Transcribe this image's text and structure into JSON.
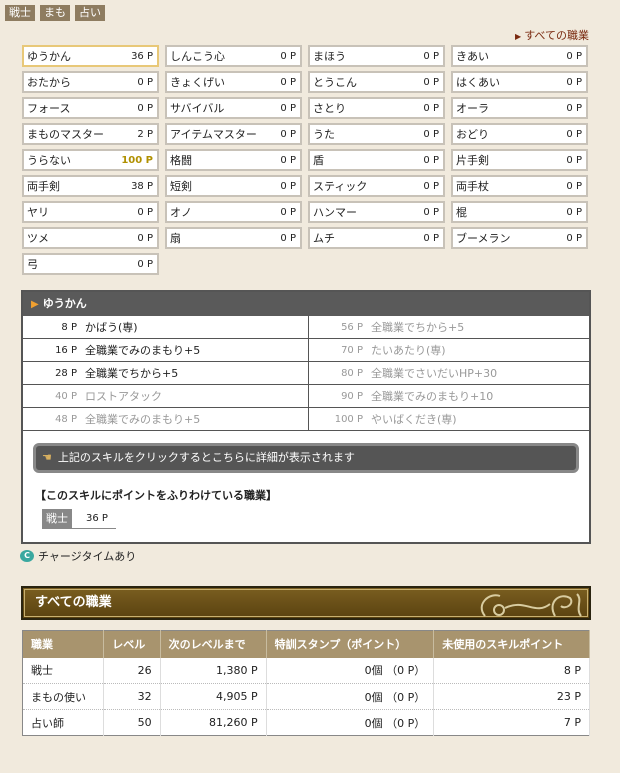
{
  "tabs": [
    "戦士",
    "まも",
    "占い"
  ],
  "all_jobs_link": "すべての職業",
  "skill_grid": [
    {
      "name": "ゆうかん",
      "points": "36 P",
      "selected": true
    },
    {
      "name": "しんこう心",
      "points": "0 P"
    },
    {
      "name": "まほう",
      "points": "0 P"
    },
    {
      "name": "きあい",
      "points": "0 P"
    },
    {
      "name": "おたから",
      "points": "0 P"
    },
    {
      "name": "きょくげい",
      "points": "0 P"
    },
    {
      "name": "とうこん",
      "points": "0 P"
    },
    {
      "name": "はくあい",
      "points": "0 P"
    },
    {
      "name": "フォース",
      "points": "0 P"
    },
    {
      "name": "サバイバル",
      "points": "0 P"
    },
    {
      "name": "さとり",
      "points": "0 P"
    },
    {
      "name": "オーラ",
      "points": "0 P"
    },
    {
      "name": "まものマスター",
      "points": "2 P"
    },
    {
      "name": "アイテムマスター",
      "points": "0 P"
    },
    {
      "name": "うた",
      "points": "0 P"
    },
    {
      "name": "おどり",
      "points": "0 P"
    },
    {
      "name": "うらない",
      "points": "100 P",
      "highlight": true
    },
    {
      "name": "格闘",
      "points": "0 P"
    },
    {
      "name": "盾",
      "points": "0 P"
    },
    {
      "name": "片手剣",
      "points": "0 P"
    },
    {
      "name": "両手剣",
      "points": "38 P"
    },
    {
      "name": "短剣",
      "points": "0 P"
    },
    {
      "name": "スティック",
      "points": "0 P"
    },
    {
      "name": "両手杖",
      "points": "0 P"
    },
    {
      "name": "ヤリ",
      "points": "0 P"
    },
    {
      "name": "オノ",
      "points": "0 P"
    },
    {
      "name": "ハンマー",
      "points": "0 P"
    },
    {
      "name": "棍",
      "points": "0 P"
    },
    {
      "name": "ツメ",
      "points": "0 P"
    },
    {
      "name": "扇",
      "points": "0 P"
    },
    {
      "name": "ムチ",
      "points": "0 P"
    },
    {
      "name": "ブーメラン",
      "points": "0 P"
    },
    {
      "name": "弓",
      "points": "0 P"
    }
  ],
  "panel": {
    "title": "ゆうかん",
    "skills": [
      {
        "p": "8 P",
        "name": "かばう(専)",
        "learned": true
      },
      {
        "p": "56 P",
        "name": "全職業でちから+5",
        "learned": false
      },
      {
        "p": "16 P",
        "name": "全職業でみのまもり+5",
        "learned": true
      },
      {
        "p": "70 P",
        "name": "たいあたり(専)",
        "learned": false
      },
      {
        "p": "28 P",
        "name": "全職業でちから+5",
        "learned": true
      },
      {
        "p": "80 P",
        "name": "全職業でさいだいHP+30",
        "learned": false
      },
      {
        "p": "40 P",
        "name": "ロストアタック",
        "learned": false
      },
      {
        "p": "90 P",
        "name": "全職業でみのまもり+10",
        "learned": false
      },
      {
        "p": "48 P",
        "name": "全職業でみのまもり+5",
        "learned": false
      },
      {
        "p": "100 P",
        "name": "やいばくだき(専)",
        "learned": false
      }
    ],
    "info": "上記のスキルをクリックするとこちらに詳細が表示されます",
    "assign_label": "【このスキルにポイントをふりわけている職業】",
    "assign": {
      "job": "戦士",
      "points": "36 P"
    }
  },
  "charge_note": "チャージタイムあり",
  "jobs_section": {
    "title": "すべての職業",
    "headers": [
      "職業",
      "レベル",
      "次のレベルまで",
      "特訓スタンプ（ポイント）",
      "未使用のスキルポイント"
    ],
    "rows": [
      [
        "戦士",
        "26",
        "1,380 P",
        "0個 （0 P）",
        "8 P"
      ],
      [
        "まもの使い",
        "32",
        "4,905 P",
        "0個 （0 P）",
        "23 P"
      ],
      [
        "占い師",
        "50",
        "81,260 P",
        "0個 （0 P）",
        "7 P"
      ]
    ]
  }
}
